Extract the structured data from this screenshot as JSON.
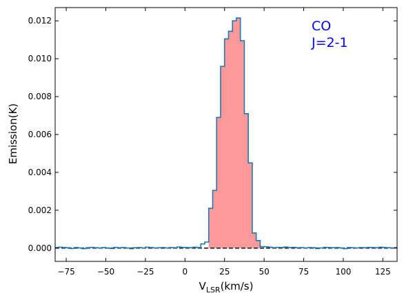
{
  "chart_data": {
    "type": "line",
    "step": true,
    "xlabel_main": "V",
    "xlabel_sub": "LSR",
    "xlabel_unit": "(km/s)",
    "ylabel": "Emission(K)",
    "xlim": [
      -82,
      134
    ],
    "ylim": [
      -0.0007,
      0.0127
    ],
    "xticks": [
      -75,
      -50,
      -25,
      0,
      25,
      50,
      75,
      100,
      125
    ],
    "xtick_labels": [
      "−75",
      "−50",
      "−25",
      "0",
      "25",
      "50",
      "75",
      "100",
      "125"
    ],
    "yticks": [
      0.0,
      0.002,
      0.004,
      0.006,
      0.008,
      0.01,
      0.012
    ],
    "ytick_labels": [
      "0.000",
      "0.002",
      "0.004",
      "0.006",
      "0.008",
      "0.010",
      "0.012"
    ],
    "annotation": [
      "CO",
      "J=2-1"
    ],
    "bin_width": 2.5,
    "fill_range": [
      15,
      47.5
    ],
    "baseline": 0.0,
    "colors": {
      "line": "#1f77b4",
      "fill": "#ff9999",
      "baseline": "#000000",
      "annotation": "#0000ff"
    },
    "series": [
      {
        "x": [
          -82.5,
          -80,
          -77.5,
          -75,
          -72.5,
          -70,
          -67.5,
          -65,
          -62.5,
          -60,
          -57.5,
          -55,
          -52.5,
          -50,
          -47.5,
          -45,
          -42.5,
          -40,
          -37.5,
          -35,
          -32.5,
          -30,
          -27.5,
          -25,
          -22.5,
          -20,
          -17.5,
          -15,
          -12.5,
          -10,
          -7.5,
          -5,
          -2.5,
          0,
          2.5,
          5,
          7.5,
          10,
          12.5,
          15,
          17.5,
          20,
          22.5,
          25,
          27.5,
          30,
          32.5,
          35,
          37.5,
          40,
          42.5,
          45,
          47.5,
          50,
          52.5,
          55,
          57.5,
          60,
          62.5,
          65,
          67.5,
          70,
          72.5,
          75,
          77.5,
          80,
          82.5,
          85,
          87.5,
          90,
          92.5,
          95,
          97.5,
          100,
          102.5,
          105,
          107.5,
          110,
          112.5,
          115,
          117.5,
          120,
          122.5,
          125,
          127.5,
          130,
          132.5
        ],
        "y": [
          3e-05,
          5e-05,
          3e-05,
          2e-05,
          -2e-05,
          3e-05,
          1e-05,
          -3e-05,
          2e-05,
          4e-05,
          2e-05,
          1e-05,
          3e-05,
          1e-05,
          -2e-05,
          4e-05,
          2e-05,
          3e-05,
          1e-05,
          -3e-05,
          2e-05,
          3e-05,
          1e-05,
          5e-05,
          3e-05,
          1e-05,
          2e-05,
          3e-05,
          1e-05,
          3e-05,
          2e-05,
          6e-05,
          4e-05,
          3e-05,
          2e-05,
          5e-05,
          3e-05,
          0.00022,
          0.00032,
          0.0021,
          0.00305,
          0.0069,
          0.0096,
          0.01105,
          0.01145,
          0.012,
          0.01215,
          0.01095,
          0.0071,
          0.0045,
          0.0008,
          0.0004,
          8e-05,
          7e-05,
          5e-05,
          2e-05,
          4e-05,
          3e-05,
          6e-05,
          3e-05,
          4e-05,
          2e-05,
          3e-05,
          1e-05,
          3e-05,
          2e-05,
          -2e-05,
          1e-05,
          4e-05,
          3e-05,
          2e-05,
          3e-05,
          1e-05,
          -3e-05,
          3e-05,
          2e-05,
          1e-05,
          3e-05,
          2e-05,
          4e-05,
          3e-05,
          2e-05,
          5e-05,
          3e-05,
          2e-05,
          1e-05,
          3e-05
        ]
      }
    ]
  }
}
